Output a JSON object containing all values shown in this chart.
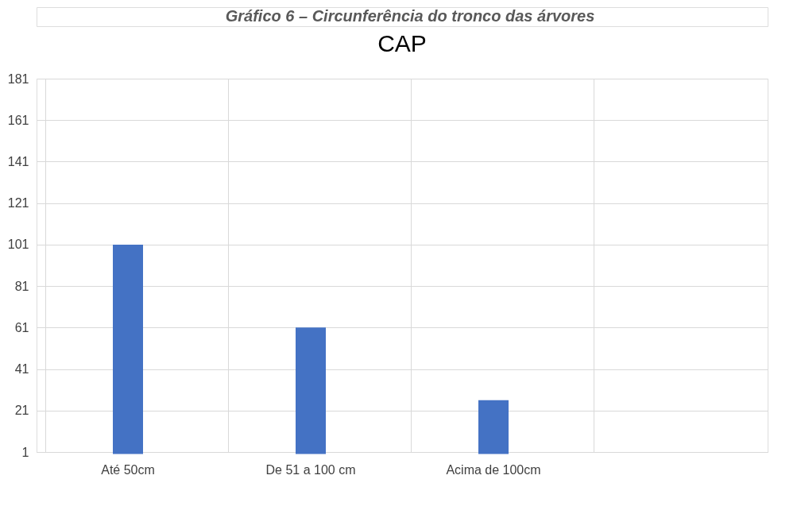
{
  "chart_data": {
    "type": "bar",
    "title": "CAP",
    "annotations": [
      "Gráfico 6 – Circunferência do tronco das árvores"
    ],
    "categories": [
      "Até 50cm",
      "De 51 a 100 cm",
      "Acima de 100cm",
      null
    ],
    "values": [
      101,
      61,
      26,
      null
    ],
    "color": "#4472c4",
    "ylim": [
      1,
      181
    ],
    "yticks": [
      1,
      21,
      41,
      61,
      81,
      101,
      121,
      141,
      161,
      181
    ],
    "grid": true
  }
}
